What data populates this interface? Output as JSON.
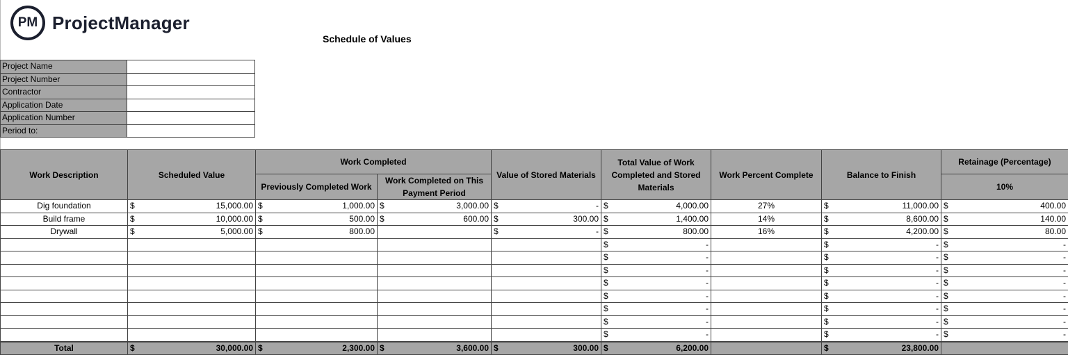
{
  "brand": {
    "logo_mark": "PM",
    "name": "ProjectManager"
  },
  "title": "Schedule of Values",
  "info_fields": [
    {
      "label": "Project Name",
      "value": ""
    },
    {
      "label": "Project Number",
      "value": ""
    },
    {
      "label": "Contractor",
      "value": ""
    },
    {
      "label": "Application Date",
      "value": ""
    },
    {
      "label": "Application Number",
      "value": ""
    },
    {
      "label": "Period to:",
      "value": ""
    }
  ],
  "headers": {
    "work_description": "Work Description",
    "scheduled_value": "Scheduled Value",
    "work_completed": "Work Completed",
    "previously_completed": "Previously Completed Work",
    "this_period": "Work Completed on This Payment Period",
    "stored_materials": "Value of Stored Materials",
    "total_value": "Total Value of Work Completed and Stored Materials",
    "percent_complete": "Work Percent Complete",
    "balance": "Balance to Finish",
    "retainage": "Retainage (Percentage)",
    "retainage_rate": "10%"
  },
  "currency": "$",
  "rows": [
    {
      "desc": "Dig foundation",
      "scheduled": "15,000.00",
      "previous": "1,000.00",
      "this_period": "3,000.00",
      "stored": "-",
      "total": "4,000.00",
      "percent": "27%",
      "balance": "11,000.00",
      "retainage": "400.00"
    },
    {
      "desc": "Build frame",
      "scheduled": "10,000.00",
      "previous": "500.00",
      "this_period": "600.00",
      "stored": "300.00",
      "total": "1,400.00",
      "percent": "14%",
      "balance": "8,600.00",
      "retainage": "140.00"
    },
    {
      "desc": "Drywall",
      "scheduled": "5,000.00",
      "previous": "800.00",
      "this_period": null,
      "stored": "-",
      "total": "800.00",
      "percent": "16%",
      "balance": "4,200.00",
      "retainage": "80.00"
    },
    {
      "desc": "",
      "scheduled": null,
      "previous": null,
      "this_period": null,
      "stored": null,
      "total": "-",
      "percent": "",
      "balance": "-",
      "retainage": "-"
    },
    {
      "desc": "",
      "scheduled": null,
      "previous": null,
      "this_period": null,
      "stored": null,
      "total": "-",
      "percent": "",
      "balance": "-",
      "retainage": "-"
    },
    {
      "desc": "",
      "scheduled": null,
      "previous": null,
      "this_period": null,
      "stored": null,
      "total": "-",
      "percent": "",
      "balance": "-",
      "retainage": "-"
    },
    {
      "desc": "",
      "scheduled": null,
      "previous": null,
      "this_period": null,
      "stored": null,
      "total": "-",
      "percent": "",
      "balance": "-",
      "retainage": "-"
    },
    {
      "desc": "",
      "scheduled": null,
      "previous": null,
      "this_period": null,
      "stored": null,
      "total": "-",
      "percent": "",
      "balance": "-",
      "retainage": "-"
    },
    {
      "desc": "",
      "scheduled": null,
      "previous": null,
      "this_period": null,
      "stored": null,
      "total": "-",
      "percent": "",
      "balance": "-",
      "retainage": "-"
    },
    {
      "desc": "",
      "scheduled": null,
      "previous": null,
      "this_period": null,
      "stored": null,
      "total": "-",
      "percent": "",
      "balance": "-",
      "retainage": "-"
    },
    {
      "desc": "",
      "scheduled": null,
      "previous": null,
      "this_period": null,
      "stored": null,
      "total": "-",
      "percent": "",
      "balance": "-",
      "retainage": "-"
    }
  ],
  "totals": {
    "label": "Total",
    "scheduled": "30,000.00",
    "previous": "2,300.00",
    "this_period": "3,600.00",
    "stored": "300.00",
    "total": "6,200.00",
    "percent": "",
    "balance": "23,800.00",
    "retainage": null
  }
}
